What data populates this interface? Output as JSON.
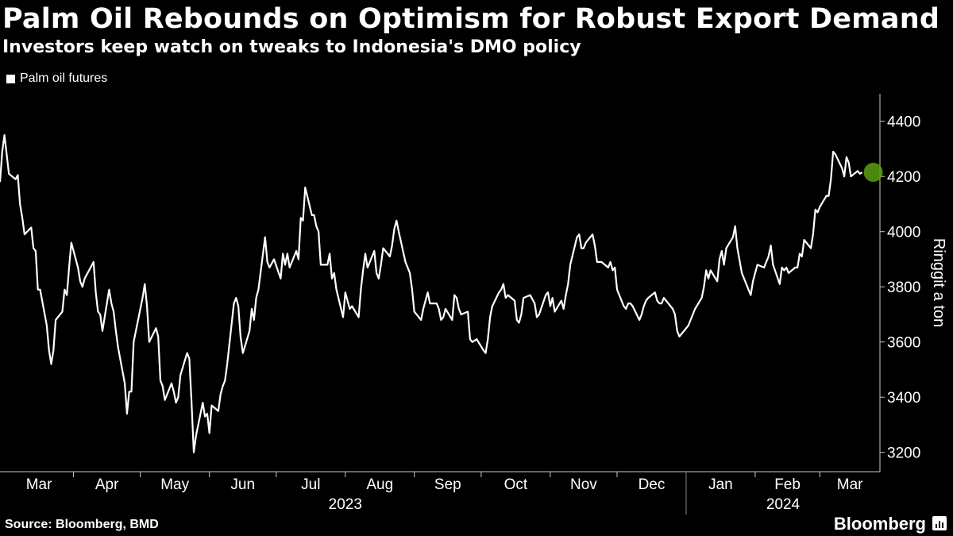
{
  "header": {
    "title": "Palm Oil Rebounds on Optimism for Robust Export Demand",
    "subtitle": "Investors keep watch on tweaks to Indonesia's DMO policy"
  },
  "legend": {
    "label": "Palm oil futures",
    "color": "#ffffff"
  },
  "footer": {
    "source": "Source: Bloomberg, BMD",
    "brand": "Bloomberg",
    "brand_icon": "bloomberg-terminal-icon"
  },
  "chart_data": {
    "type": "line",
    "title": "Palm Oil Rebounds on Optimism for Robust Export Demand",
    "subtitle": "Investors keep watch on tweaks to Indonesia's DMO policy",
    "ylabel": "Ringgit a ton",
    "ylim": [
      3130,
      4500
    ],
    "yticks": [
      3200,
      3400,
      3600,
      3800,
      4000,
      4200,
      4400
    ],
    "yaxis_position": "right",
    "grid": false,
    "legend_position": "top-left",
    "x_start": "2023-02-27",
    "x_end": "2024-03-28",
    "month_ticks": [
      "Mar",
      "Apr",
      "May",
      "Jun",
      "Jul",
      "Aug",
      "Sep",
      "Oct",
      "Nov",
      "Dec",
      "Jan",
      "Feb",
      "Mar"
    ],
    "year_labels": [
      "2023",
      "2024"
    ],
    "highlight": {
      "date": "2024-03-25",
      "value": 4215,
      "color": "#58a00f"
    },
    "series": [
      {
        "name": "Palm oil futures",
        "color": "#ffffff",
        "points": [
          [
            "2023-02-27",
            4180
          ],
          [
            "2023-02-28",
            4290
          ],
          [
            "2023-03-01",
            4350
          ],
          [
            "2023-03-02",
            4280
          ],
          [
            "2023-03-03",
            4210
          ],
          [
            "2023-03-06",
            4190
          ],
          [
            "2023-03-07",
            4205
          ],
          [
            "2023-03-08",
            4100
          ],
          [
            "2023-03-09",
            4050
          ],
          [
            "2023-03-10",
            3990
          ],
          [
            "2023-03-13",
            4015
          ],
          [
            "2023-03-14",
            3940
          ],
          [
            "2023-03-15",
            3930
          ],
          [
            "2023-03-16",
            3790
          ],
          [
            "2023-03-17",
            3790
          ],
          [
            "2023-03-20",
            3660
          ],
          [
            "2023-03-21",
            3570
          ],
          [
            "2023-03-22",
            3520
          ],
          [
            "2023-03-23",
            3570
          ],
          [
            "2023-03-24",
            3680
          ],
          [
            "2023-03-27",
            3710
          ],
          [
            "2023-03-28",
            3790
          ],
          [
            "2023-03-29",
            3770
          ],
          [
            "2023-03-30",
            3870
          ],
          [
            "2023-03-31",
            3960
          ],
          [
            "2023-04-03",
            3870
          ],
          [
            "2023-04-04",
            3820
          ],
          [
            "2023-04-05",
            3800
          ],
          [
            "2023-04-06",
            3830
          ],
          [
            "2023-04-10",
            3890
          ],
          [
            "2023-04-11",
            3780
          ],
          [
            "2023-04-12",
            3710
          ],
          [
            "2023-04-13",
            3700
          ],
          [
            "2023-04-14",
            3640
          ],
          [
            "2023-04-17",
            3790
          ],
          [
            "2023-04-18",
            3740
          ],
          [
            "2023-04-19",
            3710
          ],
          [
            "2023-04-20",
            3640
          ],
          [
            "2023-04-21",
            3580
          ],
          [
            "2023-04-24",
            3450
          ],
          [
            "2023-04-25",
            3340
          ],
          [
            "2023-04-26",
            3420
          ],
          [
            "2023-04-27",
            3420
          ],
          [
            "2023-04-28",
            3600
          ],
          [
            "2023-05-02",
            3760
          ],
          [
            "2023-05-03",
            3810
          ],
          [
            "2023-05-04",
            3730
          ],
          [
            "2023-05-05",
            3600
          ],
          [
            "2023-05-08",
            3650
          ],
          [
            "2023-05-09",
            3620
          ],
          [
            "2023-05-10",
            3460
          ],
          [
            "2023-05-11",
            3440
          ],
          [
            "2023-05-12",
            3390
          ],
          [
            "2023-05-15",
            3450
          ],
          [
            "2023-05-16",
            3420
          ],
          [
            "2023-05-17",
            3380
          ],
          [
            "2023-05-18",
            3400
          ],
          [
            "2023-05-19",
            3480
          ],
          [
            "2023-05-22",
            3560
          ],
          [
            "2023-05-23",
            3540
          ],
          [
            "2023-05-24",
            3380
          ],
          [
            "2023-05-25",
            3200
          ],
          [
            "2023-05-26",
            3260
          ],
          [
            "2023-05-29",
            3380
          ],
          [
            "2023-05-30",
            3330
          ],
          [
            "2023-05-31",
            3340
          ],
          [
            "2023-06-01",
            3270
          ],
          [
            "2023-06-02",
            3370
          ],
          [
            "2023-06-05",
            3350
          ],
          [
            "2023-06-06",
            3410
          ],
          [
            "2023-06-07",
            3440
          ],
          [
            "2023-06-08",
            3460
          ],
          [
            "2023-06-09",
            3520
          ],
          [
            "2023-06-12",
            3740
          ],
          [
            "2023-06-13",
            3760
          ],
          [
            "2023-06-14",
            3730
          ],
          [
            "2023-06-15",
            3620
          ],
          [
            "2023-06-16",
            3560
          ],
          [
            "2023-06-19",
            3640
          ],
          [
            "2023-06-20",
            3720
          ],
          [
            "2023-06-21",
            3680
          ],
          [
            "2023-06-22",
            3760
          ],
          [
            "2023-06-23",
            3790
          ],
          [
            "2023-06-26",
            3980
          ],
          [
            "2023-06-27",
            3890
          ],
          [
            "2023-06-28",
            3870
          ],
          [
            "2023-06-30",
            3900
          ],
          [
            "2023-07-03",
            3830
          ],
          [
            "2023-07-04",
            3920
          ],
          [
            "2023-07-05",
            3880
          ],
          [
            "2023-07-06",
            3920
          ],
          [
            "2023-07-07",
            3870
          ],
          [
            "2023-07-10",
            3930
          ],
          [
            "2023-07-11",
            3900
          ],
          [
            "2023-07-12",
            4050
          ],
          [
            "2023-07-13",
            4040
          ],
          [
            "2023-07-14",
            4160
          ],
          [
            "2023-07-17",
            4060
          ],
          [
            "2023-07-18",
            4060
          ],
          [
            "2023-07-19",
            4020
          ],
          [
            "2023-07-20",
            4000
          ],
          [
            "2023-07-21",
            3880
          ],
          [
            "2023-07-24",
            3880
          ],
          [
            "2023-07-25",
            3920
          ],
          [
            "2023-07-26",
            3830
          ],
          [
            "2023-07-27",
            3850
          ],
          [
            "2023-07-28",
            3790
          ],
          [
            "2023-07-31",
            3690
          ],
          [
            "2023-08-01",
            3780
          ],
          [
            "2023-08-02",
            3750
          ],
          [
            "2023-08-03",
            3720
          ],
          [
            "2023-08-04",
            3730
          ],
          [
            "2023-08-07",
            3690
          ],
          [
            "2023-08-08",
            3790
          ],
          [
            "2023-08-09",
            3860
          ],
          [
            "2023-08-10",
            3920
          ],
          [
            "2023-08-11",
            3870
          ],
          [
            "2023-08-14",
            3930
          ],
          [
            "2023-08-15",
            3850
          ],
          [
            "2023-08-16",
            3830
          ],
          [
            "2023-08-17",
            3880
          ],
          [
            "2023-08-18",
            3940
          ],
          [
            "2023-08-21",
            3910
          ],
          [
            "2023-08-22",
            3950
          ],
          [
            "2023-08-23",
            4010
          ],
          [
            "2023-08-24",
            4040
          ],
          [
            "2023-08-25",
            4000
          ],
          [
            "2023-08-28",
            3890
          ],
          [
            "2023-08-29",
            3870
          ],
          [
            "2023-08-30",
            3850
          ],
          [
            "2023-08-31",
            3790
          ],
          [
            "2023-09-01",
            3710
          ],
          [
            "2023-09-04",
            3680
          ],
          [
            "2023-09-05",
            3720
          ],
          [
            "2023-09-06",
            3750
          ],
          [
            "2023-09-07",
            3780
          ],
          [
            "2023-09-08",
            3740
          ],
          [
            "2023-09-11",
            3740
          ],
          [
            "2023-09-12",
            3720
          ],
          [
            "2023-09-13",
            3680
          ],
          [
            "2023-09-14",
            3690
          ],
          [
            "2023-09-15",
            3720
          ],
          [
            "2023-09-18",
            3680
          ],
          [
            "2023-09-19",
            3770
          ],
          [
            "2023-09-20",
            3760
          ],
          [
            "2023-09-21",
            3720
          ],
          [
            "2023-09-22",
            3700
          ],
          [
            "2023-09-25",
            3710
          ],
          [
            "2023-09-26",
            3610
          ],
          [
            "2023-09-27",
            3600
          ],
          [
            "2023-09-29",
            3610
          ],
          [
            "2023-10-02",
            3570
          ],
          [
            "2023-10-03",
            3560
          ],
          [
            "2023-10-04",
            3610
          ],
          [
            "2023-10-05",
            3690
          ],
          [
            "2023-10-06",
            3730
          ],
          [
            "2023-10-09",
            3780
          ],
          [
            "2023-10-10",
            3790
          ],
          [
            "2023-10-11",
            3810
          ],
          [
            "2023-10-12",
            3760
          ],
          [
            "2023-10-13",
            3770
          ],
          [
            "2023-10-16",
            3750
          ],
          [
            "2023-10-17",
            3680
          ],
          [
            "2023-10-18",
            3670
          ],
          [
            "2023-10-19",
            3700
          ],
          [
            "2023-10-20",
            3760
          ],
          [
            "2023-10-23",
            3770
          ],
          [
            "2023-10-25",
            3740
          ],
          [
            "2023-10-26",
            3690
          ],
          [
            "2023-10-27",
            3700
          ],
          [
            "2023-10-30",
            3770
          ],
          [
            "2023-10-31",
            3780
          ],
          [
            "2023-11-01",
            3730
          ],
          [
            "2023-11-02",
            3760
          ],
          [
            "2023-11-03",
            3710
          ],
          [
            "2023-11-06",
            3750
          ],
          [
            "2023-11-07",
            3720
          ],
          [
            "2023-11-08",
            3770
          ],
          [
            "2023-11-09",
            3810
          ],
          [
            "2023-11-10",
            3880
          ],
          [
            "2023-11-13",
            3980
          ],
          [
            "2023-11-14",
            3990
          ],
          [
            "2023-11-15",
            3940
          ],
          [
            "2023-11-16",
            3940
          ],
          [
            "2023-11-17",
            3960
          ],
          [
            "2023-11-20",
            3990
          ],
          [
            "2023-11-21",
            3950
          ],
          [
            "2023-11-22",
            3890
          ],
          [
            "2023-11-23",
            3890
          ],
          [
            "2023-11-24",
            3890
          ],
          [
            "2023-11-27",
            3870
          ],
          [
            "2023-11-28",
            3890
          ],
          [
            "2023-11-29",
            3860
          ],
          [
            "2023-11-30",
            3870
          ],
          [
            "2023-12-01",
            3790
          ],
          [
            "2023-12-04",
            3730
          ],
          [
            "2023-12-05",
            3720
          ],
          [
            "2023-12-06",
            3740
          ],
          [
            "2023-12-07",
            3740
          ],
          [
            "2023-12-08",
            3730
          ],
          [
            "2023-12-11",
            3680
          ],
          [
            "2023-12-12",
            3700
          ],
          [
            "2023-12-13",
            3730
          ],
          [
            "2023-12-14",
            3750
          ],
          [
            "2023-12-15",
            3760
          ],
          [
            "2023-12-18",
            3780
          ],
          [
            "2023-12-19",
            3750
          ],
          [
            "2023-12-20",
            3740
          ],
          [
            "2023-12-21",
            3740
          ],
          [
            "2023-12-22",
            3760
          ],
          [
            "2023-12-26",
            3720
          ],
          [
            "2023-12-27",
            3700
          ],
          [
            "2023-12-28",
            3640
          ],
          [
            "2023-12-29",
            3620
          ],
          [
            "2024-01-02",
            3660
          ],
          [
            "2024-01-03",
            3680
          ],
          [
            "2024-01-04",
            3700
          ],
          [
            "2024-01-05",
            3720
          ],
          [
            "2024-01-08",
            3760
          ],
          [
            "2024-01-09",
            3800
          ],
          [
            "2024-01-10",
            3860
          ],
          [
            "2024-01-11",
            3830
          ],
          [
            "2024-01-12",
            3860
          ],
          [
            "2024-01-15",
            3820
          ],
          [
            "2024-01-16",
            3900
          ],
          [
            "2024-01-17",
            3930
          ],
          [
            "2024-01-18",
            3880
          ],
          [
            "2024-01-19",
            3940
          ],
          [
            "2024-01-22",
            3980
          ],
          [
            "2024-01-23",
            4020
          ],
          [
            "2024-01-24",
            3940
          ],
          [
            "2024-01-26",
            3850
          ],
          [
            "2024-01-29",
            3790
          ],
          [
            "2024-01-30",
            3770
          ],
          [
            "2024-01-31",
            3820
          ],
          [
            "2024-02-01",
            3850
          ],
          [
            "2024-02-02",
            3880
          ],
          [
            "2024-02-05",
            3870
          ],
          [
            "2024-02-06",
            3890
          ],
          [
            "2024-02-07",
            3910
          ],
          [
            "2024-02-08",
            3950
          ],
          [
            "2024-02-09",
            3880
          ],
          [
            "2024-02-12",
            3810
          ],
          [
            "2024-02-13",
            3870
          ],
          [
            "2024-02-14",
            3860
          ],
          [
            "2024-02-15",
            3870
          ],
          [
            "2024-02-16",
            3850
          ],
          [
            "2024-02-19",
            3870
          ],
          [
            "2024-02-20",
            3870
          ],
          [
            "2024-02-21",
            3920
          ],
          [
            "2024-02-22",
            3910
          ],
          [
            "2024-02-23",
            3970
          ],
          [
            "2024-02-26",
            3940
          ],
          [
            "2024-02-27",
            3990
          ],
          [
            "2024-02-28",
            4080
          ],
          [
            "2024-02-29",
            4070
          ],
          [
            "2024-03-01",
            4090
          ],
          [
            "2024-03-04",
            4130
          ],
          [
            "2024-03-05",
            4130
          ],
          [
            "2024-03-06",
            4190
          ],
          [
            "2024-03-07",
            4290
          ],
          [
            "2024-03-08",
            4280
          ],
          [
            "2024-03-11",
            4230
          ],
          [
            "2024-03-12",
            4200
          ],
          [
            "2024-03-13",
            4270
          ],
          [
            "2024-03-14",
            4250
          ],
          [
            "2024-03-15",
            4200
          ],
          [
            "2024-03-18",
            4220
          ],
          [
            "2024-03-19",
            4210
          ],
          [
            "2024-03-20",
            4215
          ]
        ]
      }
    ]
  }
}
